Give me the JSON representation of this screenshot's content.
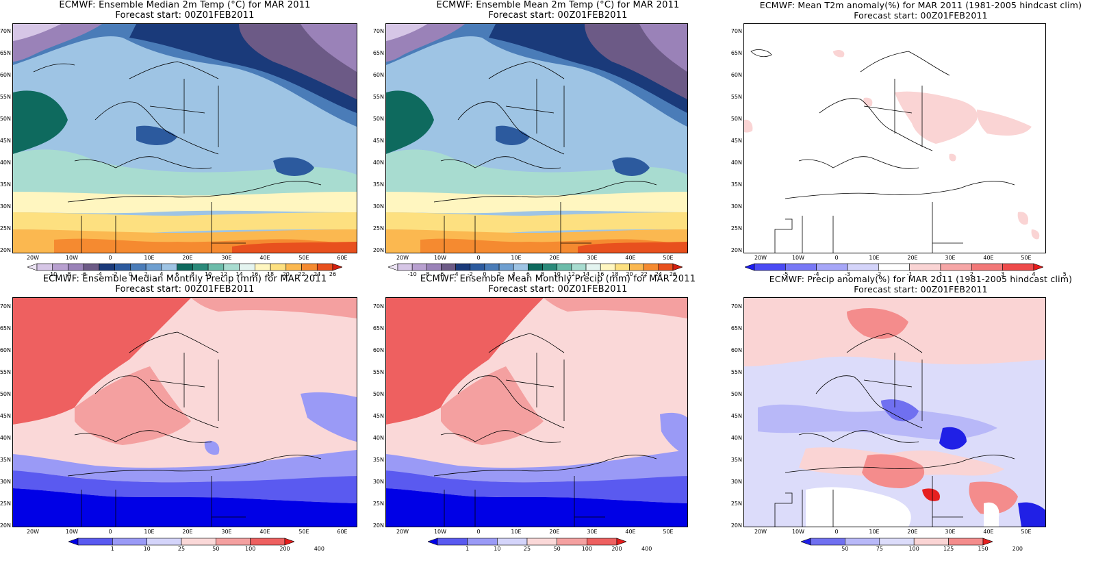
{
  "panels": [
    {
      "id": "median-temp",
      "title_line1": "ECMWF: Ensemble Median 2m Temp (°C) for MAR 2011",
      "title_line2": "Forecast start: 00Z01FEB2011",
      "y_ticks": [
        "70N",
        "65N",
        "60N",
        "55N",
        "50N",
        "45N",
        "40N",
        "35N",
        "30N",
        "25N",
        "20N"
      ],
      "x_ticks": [
        "20W",
        "10W",
        "0",
        "10E",
        "20E",
        "30E",
        "40E",
        "50E",
        "60E"
      ],
      "colorbar_labels": [
        "-10",
        "-8",
        "-6",
        "-4",
        "-2",
        "0",
        "2",
        "4",
        "6",
        "8",
        "10",
        "12",
        "14",
        "16",
        "18",
        "20",
        "22",
        "24",
        "26"
      ],
      "colorbar_colors": [
        "#ece4f4",
        "#d6c6e6",
        "#b8a0d0",
        "#9a82b8",
        "#6c5a86",
        "#1a3a7a",
        "#2c5a9e",
        "#4a7cb8",
        "#6e9fd0",
        "#9ec4e4",
        "#0e6a5e",
        "#2a8a7a",
        "#6cbcaa",
        "#a8dcd0",
        "#e4f4f0",
        "#fff6c0",
        "#fde080",
        "#fbb850",
        "#f58a30",
        "#e8501e",
        "#d42010"
      ]
    },
    {
      "id": "mean-temp",
      "title_line1": "ECMWF: Ensemble Mean 2m Temp (°C) for MAR 2011",
      "title_line2": "Forecast start: 00Z01FEB2011",
      "y_ticks": [
        "70N",
        "65N",
        "60N",
        "55N",
        "50N",
        "45N",
        "40N",
        "35N",
        "30N",
        "25N",
        "20N"
      ],
      "x_ticks": [
        "20W",
        "10W",
        "0",
        "10E",
        "20E",
        "30E",
        "40E",
        "50E"
      ],
      "colorbar_labels": [
        "-10",
        "-8",
        "-6",
        "-4",
        "-2",
        "0",
        "2",
        "4",
        "6",
        "8",
        "10",
        "12",
        "14",
        "16",
        "18",
        "20",
        "22",
        "24",
        "26"
      ],
      "colorbar_colors": [
        "#ece4f4",
        "#d6c6e6",
        "#b8a0d0",
        "#9a82b8",
        "#6c5a86",
        "#1a3a7a",
        "#2c5a9e",
        "#4a7cb8",
        "#6e9fd0",
        "#9ec4e4",
        "#0e6a5e",
        "#2a8a7a",
        "#6cbcaa",
        "#a8dcd0",
        "#e4f4f0",
        "#fff6c0",
        "#fde080",
        "#fbb850",
        "#f58a30",
        "#e8501e",
        "#d42010"
      ]
    },
    {
      "id": "t2m-anomaly",
      "title_line1": "ECMWF: Mean T2m anomaly(%) for MAR 2011 (1981-2005 hindcast clim)",
      "title_line2": "Forecast start: 00Z01FEB2011",
      "y_ticks": [
        "70N",
        "65N",
        "60N",
        "55N",
        "50N",
        "45N",
        "40N",
        "35N",
        "30N",
        "25N",
        "20N"
      ],
      "x_ticks": [
        "20W",
        "10W",
        "0",
        "10E",
        "20E",
        "30E",
        "40E",
        "50E"
      ],
      "colorbar_labels": [
        "-5",
        "-4",
        "-3",
        "-2",
        "-1",
        "1",
        "2",
        "3",
        "4",
        "5"
      ],
      "colorbar_colors": [
        "#1c1cf0",
        "#4a4af4",
        "#7878f6",
        "#a6a6f8",
        "#d4d4fa",
        "#ffffff",
        "#fad4d4",
        "#f6a6a6",
        "#f27878",
        "#ee4a4a",
        "#e81c1c"
      ]
    },
    {
      "id": "median-precip",
      "title_line1": "ECMWF: Ensemble Median Monthly Precip (mm) for MAR 2011",
      "title_line2": "Forecast start: 00Z01FEB2011",
      "y_ticks": [
        "70N",
        "65N",
        "60N",
        "55N",
        "50N",
        "45N",
        "40N",
        "35N",
        "30N",
        "25N",
        "20N"
      ],
      "x_ticks": [
        "20W",
        "10W",
        "0",
        "10E",
        "20E",
        "30E",
        "40E",
        "50E",
        "60E"
      ],
      "colorbar_labels": [
        "1",
        "10",
        "25",
        "50",
        "100",
        "200",
        "400"
      ],
      "colorbar_colors": [
        "#0000e6",
        "#5a5af0",
        "#9a9af6",
        "#d4d4fa",
        "#fad8d8",
        "#f4a0a0",
        "#ee6060",
        "#e61c1c"
      ]
    },
    {
      "id": "mean-precip",
      "title_line1": "ECMWF: Ensemble Mean Monthly Precip (mm) for MAR 2011",
      "title_line2": "Forecast start: 00Z01FEB2011",
      "y_ticks": [
        "70N",
        "65N",
        "60N",
        "55N",
        "50N",
        "45N",
        "40N",
        "35N",
        "30N",
        "25N",
        "20N"
      ],
      "x_ticks": [
        "20W",
        "10W",
        "0",
        "10E",
        "20E",
        "30E",
        "40E",
        "50E"
      ],
      "colorbar_labels": [
        "1",
        "10",
        "25",
        "50",
        "100",
        "200",
        "400"
      ],
      "colorbar_colors": [
        "#0000e6",
        "#5a5af0",
        "#9a9af6",
        "#d4d4fa",
        "#fad8d8",
        "#f4a0a0",
        "#ee6060",
        "#e61c1c"
      ]
    },
    {
      "id": "precip-anomaly",
      "title_line1": "ECMWF: Precip anomaly(%) for MAR 2011 (1981-2005 hindcast clim)",
      "title_line2": "Forecast start: 00Z01FEB2011",
      "y_ticks": [
        "70N",
        "65N",
        "60N",
        "55N",
        "50N",
        "45N",
        "40N",
        "35N",
        "30N",
        "25N",
        "20N"
      ],
      "x_ticks": [
        "20W",
        "10W",
        "0",
        "10E",
        "20E",
        "30E",
        "40E",
        "50E"
      ],
      "colorbar_labels": [
        "50",
        "75",
        "100",
        "125",
        "150",
        "200"
      ],
      "colorbar_colors": [
        "#2020e6",
        "#7070f0",
        "#b8b8f8",
        "#dcdcfa",
        "#fad4d4",
        "#f48c8c",
        "#e62020"
      ]
    }
  ]
}
